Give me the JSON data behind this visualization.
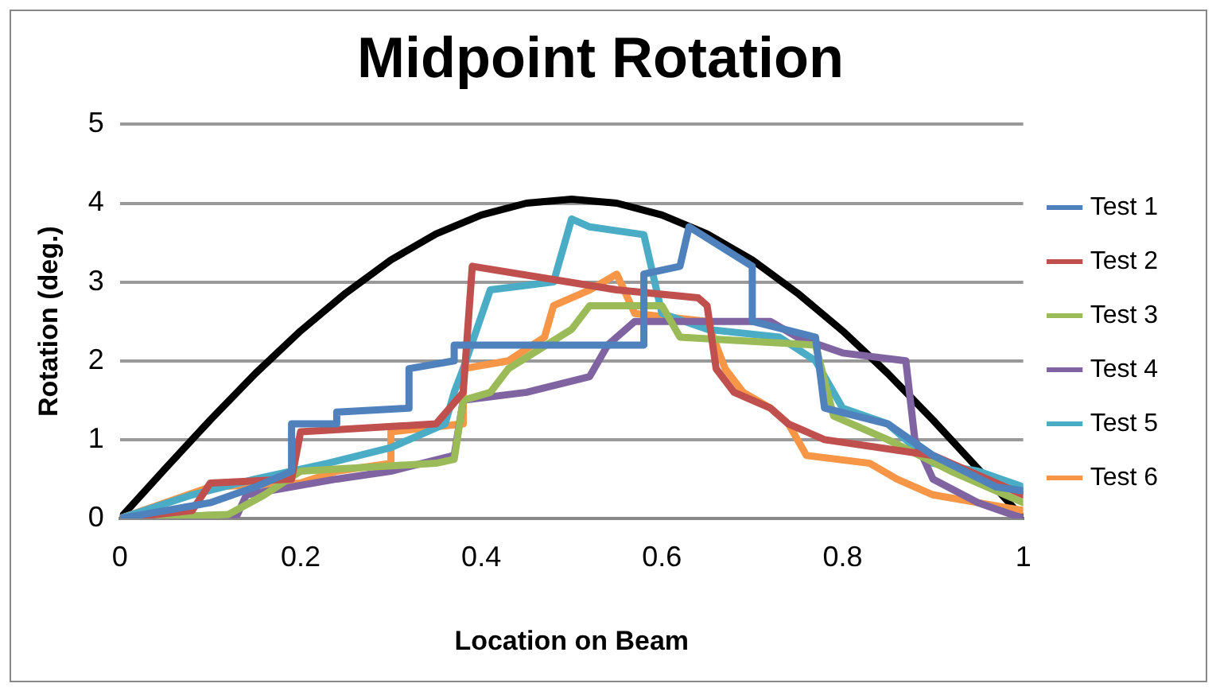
{
  "chart_data": {
    "type": "line",
    "title": "Midpoint Rotation",
    "xlabel": "Location on Beam",
    "ylabel": "Rotation (deg.)",
    "xlim": [
      0,
      1
    ],
    "xticks": [
      0,
      0.2,
      0.4,
      0.6,
      0.8,
      1
    ],
    "ylim": [
      0,
      5
    ],
    "yticks": [
      0,
      1,
      2,
      3,
      4,
      5
    ],
    "grid": "y",
    "legend": "right",
    "marker": "none",
    "line_style": "solid",
    "series": [
      {
        "name": "Test 1",
        "color": "#4f81bd",
        "x": [
          0,
          0.05,
          0.1,
          0.15,
          0.19,
          0.19,
          0.24,
          0.24,
          0.32,
          0.32,
          0.37,
          0.37,
          0.58,
          0.58,
          0.62,
          0.63,
          0.7,
          0.7,
          0.77,
          0.78,
          0.85,
          0.9,
          0.97,
          1
        ],
        "values": [
          0,
          0.1,
          0.2,
          0.4,
          0.6,
          1.2,
          1.2,
          1.35,
          1.4,
          1.9,
          2.0,
          2.2,
          2.2,
          3.1,
          3.2,
          3.7,
          3.2,
          2.5,
          2.3,
          1.4,
          1.2,
          0.8,
          0.4,
          0.35
        ]
      },
      {
        "name": "Test 2",
        "color": "#c0504d",
        "x": [
          0,
          0.08,
          0.1,
          0.19,
          0.2,
          0.35,
          0.38,
          0.39,
          0.55,
          0.64,
          0.65,
          0.66,
          0.68,
          0.72,
          0.74,
          0.78,
          0.9,
          1
        ],
        "values": [
          0,
          0.1,
          0.45,
          0.5,
          1.1,
          1.2,
          1.6,
          3.2,
          2.9,
          2.8,
          2.7,
          1.9,
          1.6,
          1.4,
          1.2,
          1.0,
          0.8,
          0.3
        ]
      },
      {
        "name": "Test 3",
        "color": "#9bbb59",
        "x": [
          0,
          0.12,
          0.16,
          0.2,
          0.35,
          0.37,
          0.38,
          0.41,
          0.43,
          0.5,
          0.52,
          0.6,
          0.62,
          0.77,
          0.79,
          0.85,
          0.92,
          1
        ],
        "values": [
          0,
          0.05,
          0.3,
          0.6,
          0.7,
          0.75,
          1.5,
          1.6,
          1.9,
          2.4,
          2.7,
          2.7,
          2.3,
          2.2,
          1.3,
          1.0,
          0.6,
          0.2
        ]
      },
      {
        "name": "Test 4",
        "color": "#8064a2",
        "x": [
          0,
          0.13,
          0.14,
          0.24,
          0.3,
          0.37,
          0.38,
          0.45,
          0.52,
          0.54,
          0.57,
          0.72,
          0.75,
          0.8,
          0.87,
          0.88,
          0.9,
          0.95,
          1
        ],
        "values": [
          0,
          0.05,
          0.3,
          0.5,
          0.6,
          0.8,
          1.5,
          1.6,
          1.8,
          2.2,
          2.5,
          2.5,
          2.3,
          2.1,
          2.0,
          1.0,
          0.5,
          0.2,
          0
        ]
      },
      {
        "name": "Test 5",
        "color": "#4bacc6",
        "x": [
          0,
          0.08,
          0.15,
          0.23,
          0.3,
          0.36,
          0.37,
          0.38,
          0.41,
          0.48,
          0.5,
          0.52,
          0.58,
          0.6,
          0.65,
          0.73,
          0.77,
          0.8,
          0.85,
          0.88,
          0.9,
          0.95,
          1
        ],
        "values": [
          0,
          0.3,
          0.5,
          0.7,
          0.9,
          1.2,
          1.6,
          1.9,
          2.9,
          3.0,
          3.8,
          3.7,
          3.6,
          2.6,
          2.4,
          2.3,
          2.0,
          1.4,
          1.2,
          0.9,
          0.7,
          0.6,
          0.4
        ]
      },
      {
        "name": "Test 6",
        "color": "#f79646",
        "x": [
          0,
          0.05,
          0.1,
          0.2,
          0.24,
          0.3,
          0.3,
          0.38,
          0.38,
          0.43,
          0.47,
          0.48,
          0.52,
          0.55,
          0.57,
          0.65,
          0.67,
          0.69,
          0.72,
          0.74,
          0.76,
          0.83,
          0.86,
          0.9,
          0.95,
          1
        ],
        "values": [
          0,
          0.2,
          0.4,
          0.45,
          0.6,
          0.7,
          1.1,
          1.2,
          1.9,
          2.0,
          2.3,
          2.7,
          2.9,
          3.1,
          2.6,
          2.5,
          1.9,
          1.6,
          1.4,
          1.2,
          0.8,
          0.7,
          0.5,
          0.3,
          0.2,
          0.1
        ]
      },
      {
        "color": "#000000",
        "x": [
          0,
          0.05,
          0.1,
          0.15,
          0.2,
          0.25,
          0.3,
          0.35,
          0.4,
          0.45,
          0.5,
          0.55,
          0.6,
          0.65,
          0.7,
          0.75,
          0.8,
          0.85,
          0.9,
          0.95,
          1
        ],
        "values": [
          0,
          0.63,
          1.25,
          1.84,
          2.38,
          2.86,
          3.28,
          3.61,
          3.85,
          4.0,
          4.05,
          4.0,
          3.85,
          3.61,
          3.28,
          2.86,
          2.38,
          1.84,
          1.25,
          0.63,
          0
        ]
      }
    ]
  }
}
